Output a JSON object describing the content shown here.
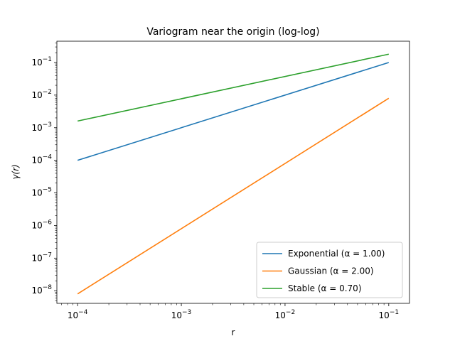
{
  "chart_data": {
    "type": "line",
    "title": "Variogram near the origin (log-log)",
    "xlabel": "r",
    "ylabel": "γ(r)",
    "xscale": "log",
    "yscale": "log",
    "xlim": [
      6.31e-05,
      0.1585
    ],
    "ylim": [
      4.1e-09,
      0.45
    ],
    "x_ticks": [
      {
        "value": 0.0001,
        "base": "10",
        "exp": "−4"
      },
      {
        "value": 0.001,
        "base": "10",
        "exp": "−3"
      },
      {
        "value": 0.01,
        "base": "10",
        "exp": "−2"
      },
      {
        "value": 0.1,
        "base": "10",
        "exp": "−1"
      }
    ],
    "y_ticks": [
      {
        "value": 1e-08,
        "base": "10",
        "exp": "−8"
      },
      {
        "value": 1e-07,
        "base": "10",
        "exp": "−7"
      },
      {
        "value": 1e-06,
        "base": "10",
        "exp": "−6"
      },
      {
        "value": 1e-05,
        "base": "10",
        "exp": "−5"
      },
      {
        "value": 0.0001,
        "base": "10",
        "exp": "−4"
      },
      {
        "value": 0.001,
        "base": "10",
        "exp": "−3"
      },
      {
        "value": 0.01,
        "base": "10",
        "exp": "−2"
      },
      {
        "value": 0.1,
        "base": "10",
        "exp": "−1"
      }
    ],
    "grid": false,
    "legend_position": "lower-right",
    "series": [
      {
        "name": "Exponential (α = 1.00)",
        "color": "#1f77b4",
        "x": [
          0.0001,
          0.1
        ],
        "y": [
          0.0001,
          0.1
        ]
      },
      {
        "name": "Gaussian (α = 2.00)",
        "color": "#ff7f0e",
        "x": [
          0.0001,
          0.1
        ],
        "y": [
          8e-09,
          0.008
        ]
      },
      {
        "name": "Stable (α = 0.70)",
        "color": "#2ca02c",
        "x": [
          0.0001,
          0.1
        ],
        "y": [
          0.0016,
          0.18
        ]
      }
    ]
  }
}
